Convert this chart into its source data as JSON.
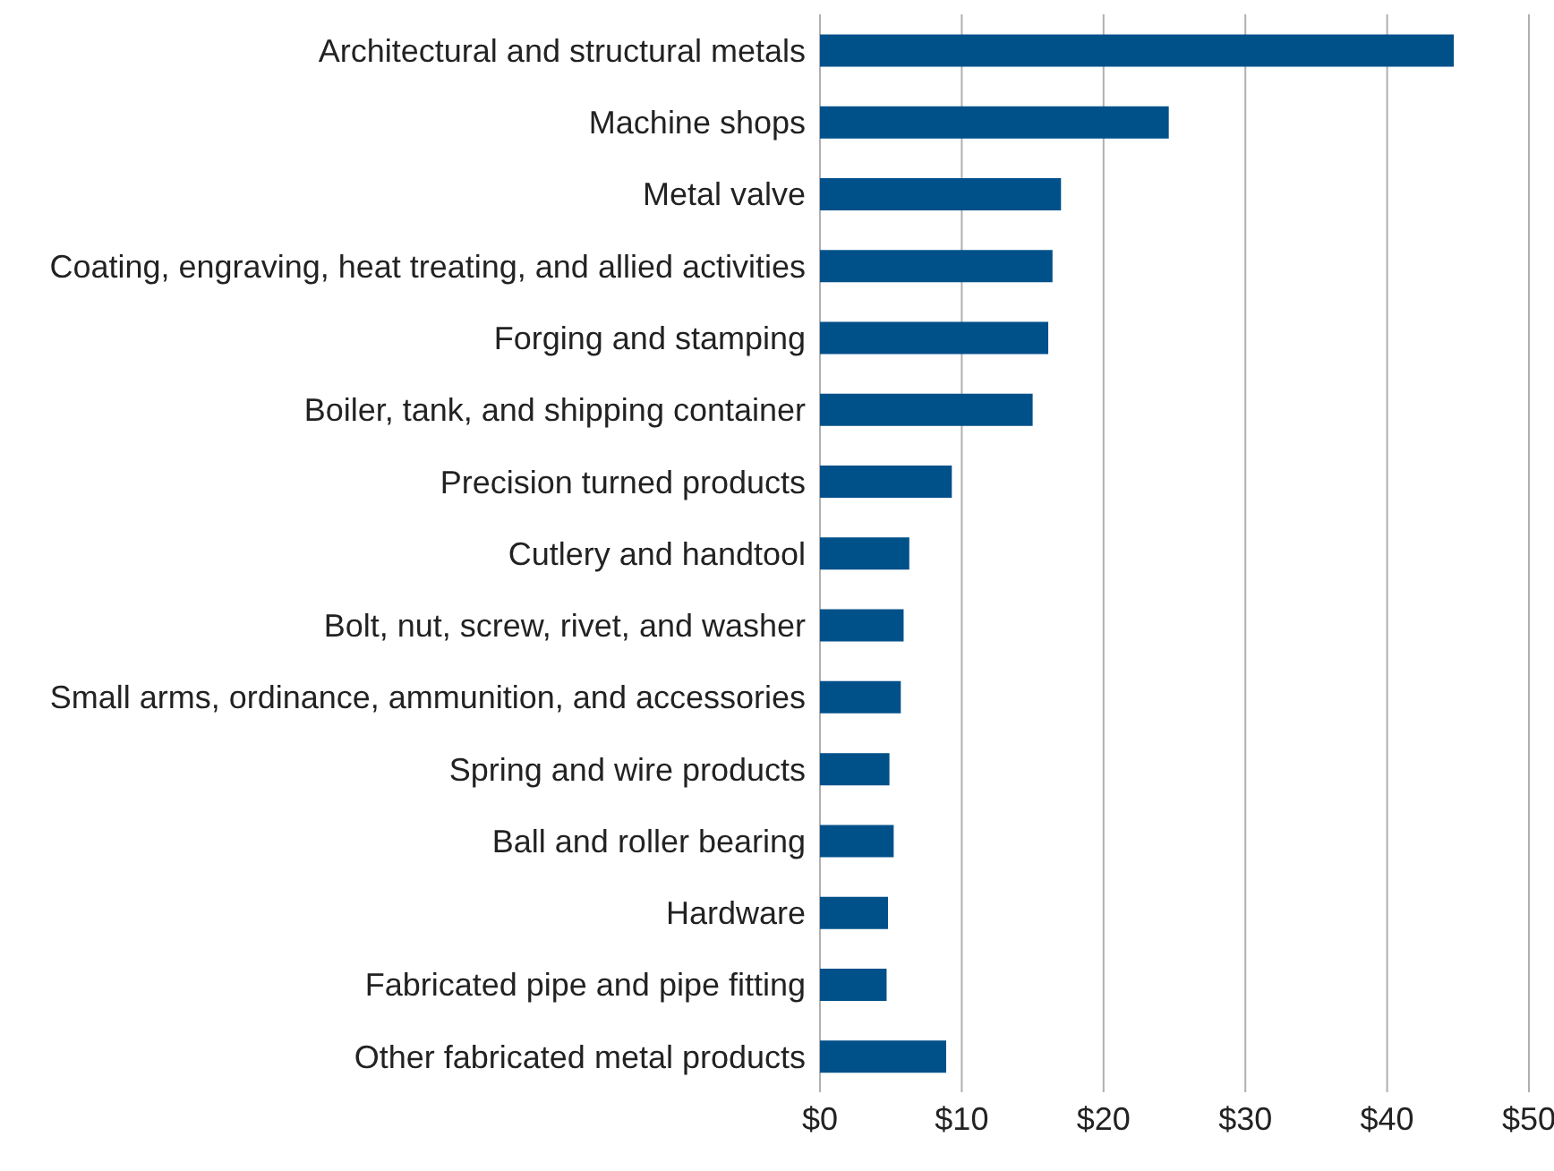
{
  "chart_data": {
    "type": "bar",
    "orientation": "horizontal",
    "categories": [
      "Architectural and structural metals",
      "Machine shops",
      "Metal valve",
      "Coating, engraving, heat treating, and allied activities",
      "Forging and stamping",
      "Boiler, tank, and shipping container",
      "Precision turned products",
      "Cutlery and handtool",
      "Bolt, nut, screw, rivet, and washer",
      "Small arms, ordinance, ammunition, and accessories",
      "Spring and wire products",
      "Ball and roller bearing",
      "Hardware",
      "Fabricated pipe and pipe fitting",
      "Other fabricated metal products"
    ],
    "values": [
      44.7,
      24.6,
      17.0,
      16.4,
      16.1,
      15.0,
      9.3,
      6.3,
      5.9,
      5.7,
      4.9,
      5.2,
      4.8,
      4.7,
      8.9
    ],
    "color": "#00508a",
    "xlim": [
      0,
      50
    ],
    "xticks": [
      {
        "value": 0,
        "label": "$0"
      },
      {
        "value": 10,
        "label": "$10"
      },
      {
        "value": 20,
        "label": "$20"
      },
      {
        "value": 30,
        "label": "$30"
      },
      {
        "value": 40,
        "label": "$40"
      },
      {
        "value": 50,
        "label": "$50"
      }
    ],
    "grid": "x"
  }
}
